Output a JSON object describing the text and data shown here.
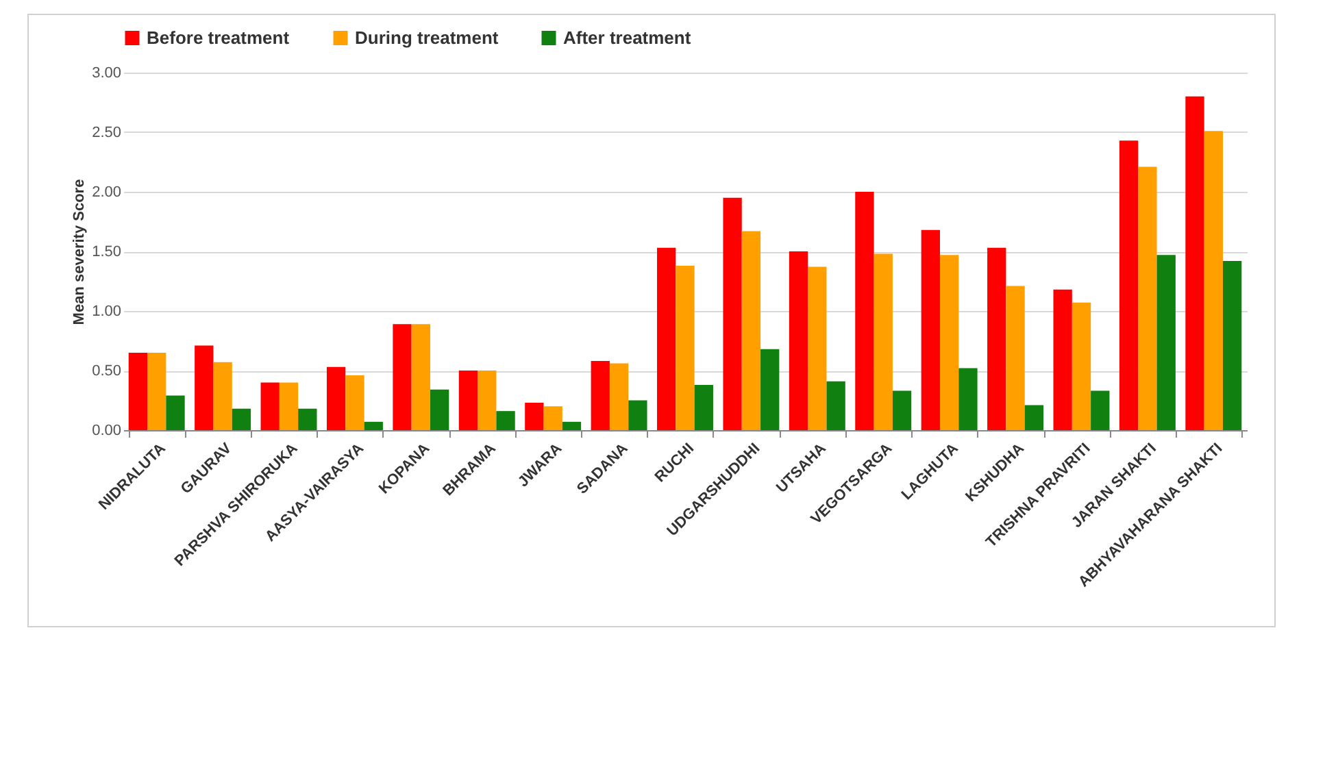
{
  "chart_data": {
    "type": "bar",
    "ylabel": "Mean severity Score",
    "categories": [
      "NIDRALUTA",
      "GAURAV",
      "PARSHVA SHIRORUKA",
      "AASYA-VAIRASYA",
      "KOPANA",
      "BHRAMA",
      "JWARA",
      "SADANA",
      "RUCHI",
      "UDGARSHUDDHI",
      "UTSAHA",
      "VEGOTSARGA",
      "LAGHUTA",
      "KSHUDHA",
      "TRISHNA PRAVRITI",
      "JARAN SHAKTI",
      "ABHYAVAHARANA SHAKTI"
    ],
    "series": [
      {
        "name": "Before treatment",
        "color": "#ff0000",
        "values": [
          0.65,
          0.71,
          0.4,
          0.53,
          0.89,
          0.5,
          0.23,
          0.58,
          1.53,
          1.95,
          1.5,
          2.0,
          1.68,
          1.53,
          1.18,
          2.43,
          2.8
        ]
      },
      {
        "name": "During treatment",
        "color": "#ffa000",
        "values": [
          0.65,
          0.57,
          0.4,
          0.46,
          0.89,
          0.5,
          0.2,
          0.56,
          1.38,
          1.67,
          1.37,
          1.48,
          1.47,
          1.21,
          1.07,
          2.21,
          2.51
        ]
      },
      {
        "name": "After treatment",
        "color": "#108010",
        "values": [
          0.29,
          0.18,
          0.18,
          0.07,
          0.34,
          0.16,
          0.07,
          0.25,
          0.38,
          0.68,
          0.41,
          0.33,
          0.52,
          0.21,
          0.33,
          1.47,
          1.42
        ]
      }
    ],
    "ylim": [
      0,
      3
    ],
    "yticks": [
      {
        "value": 0,
        "label": "0.00"
      },
      {
        "value": 0.5,
        "label": "0.50"
      },
      {
        "value": 1,
        "label": "1.00"
      },
      {
        "value": 1.5,
        "label": "1.50"
      },
      {
        "value": 2,
        "label": "2.00"
      },
      {
        "value": 2.5,
        "label": "2.50"
      },
      {
        "value": 3,
        "label": "3.00"
      }
    ],
    "grid": "y",
    "legend": "top"
  }
}
